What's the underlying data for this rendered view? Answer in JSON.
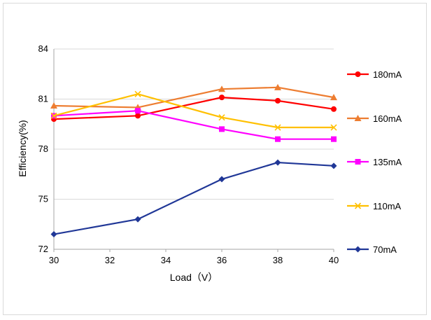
{
  "chart_data": {
    "type": "line",
    "title": "",
    "xlabel": "Load（V）",
    "ylabel": "Efficiency(%)",
    "x": [
      30,
      33,
      36,
      38,
      40
    ],
    "xlim": [
      30,
      40
    ],
    "xticks": [
      30,
      32,
      34,
      36,
      38,
      40
    ],
    "ylim": [
      72,
      84
    ],
    "yticks": [
      72,
      75,
      78,
      81,
      84
    ],
    "grid": "horizontal",
    "legend_position": "right",
    "series": [
      {
        "name": "180mA",
        "color": "#ff0000",
        "marker": "circle",
        "values": [
          79.8,
          80.0,
          81.1,
          80.9,
          80.4
        ]
      },
      {
        "name": "160mA",
        "color": "#ed7d31",
        "marker": "triangle",
        "values": [
          80.6,
          80.5,
          81.6,
          81.7,
          81.1
        ]
      },
      {
        "name": "135mA",
        "color": "#ff00ff",
        "marker": "square",
        "values": [
          80.0,
          80.3,
          79.2,
          78.6,
          78.6
        ]
      },
      {
        "name": "110mA",
        "color": "#ffc000",
        "marker": "x",
        "values": [
          80.0,
          81.3,
          79.9,
          79.3,
          79.3
        ]
      },
      {
        "name": "70mA",
        "color": "#203797",
        "marker": "diamond",
        "values": [
          72.9,
          73.8,
          76.2,
          77.2,
          77.0
        ]
      }
    ]
  }
}
